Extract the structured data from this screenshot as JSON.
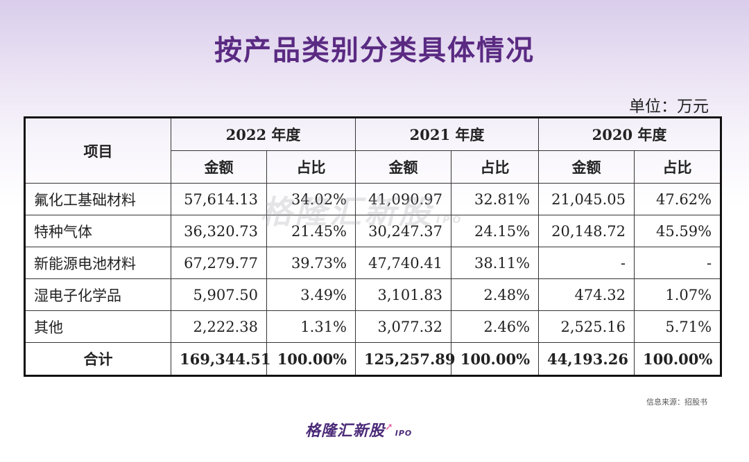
{
  "title": "按产品类别分类具体情况",
  "unit": "单位：万元",
  "table": {
    "item_header": "项目",
    "years": [
      "2022 年度",
      "2021 年度",
      "2020 年度"
    ],
    "subheaders": [
      "金额",
      "占比",
      "金额",
      "占比",
      "金额",
      "占比"
    ],
    "rows": [
      {
        "name": "氟化工基础材料",
        "values": [
          "57,614.13",
          "34.02%",
          "41,090.97",
          "32.81%",
          "21,045.05",
          "47.62%"
        ]
      },
      {
        "name": "特种气体",
        "values": [
          "36,320.73",
          "21.45%",
          "30,247.37",
          "24.15%",
          "20,148.72",
          "45.59%"
        ]
      },
      {
        "name": "新能源电池材料",
        "values": [
          "67,279.77",
          "39.73%",
          "47,740.41",
          "38.11%",
          "-",
          "-"
        ]
      },
      {
        "name": "湿电子化学品",
        "values": [
          "5,907.50",
          "3.49%",
          "3,101.83",
          "2.48%",
          "474.32",
          "1.07%"
        ]
      },
      {
        "name": "其他",
        "values": [
          "2,222.38",
          "1.31%",
          "3,077.32",
          "2.46%",
          "2,525.16",
          "5.71%"
        ]
      }
    ],
    "total": {
      "name": "合计",
      "values": [
        "169,344.51",
        "100.00%",
        "125,257.89",
        "100.00%",
        "44,193.26",
        "100.00%"
      ]
    }
  },
  "watermark": {
    "text": "格隆汇新股",
    "ipo": "IPO"
  },
  "source": "信息来源：招股书",
  "logo": {
    "text": "格隆汇新股",
    "ipo": "IPO"
  }
}
